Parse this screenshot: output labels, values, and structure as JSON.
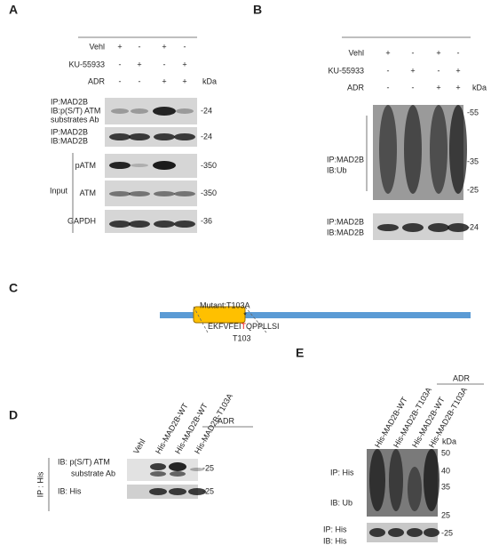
{
  "panel_a": {
    "label": "A",
    "treatments": [
      "Vehl",
      "KU-55933",
      "ADR"
    ],
    "signs": [
      [
        "+",
        "-",
        "+",
        "-"
      ],
      [
        "-",
        "+",
        "-",
        "+"
      ],
      [
        "-",
        "-",
        "+",
        "+"
      ]
    ],
    "unit": "kDa",
    "blots": [
      {
        "label": [
          "IP:MAD2B",
          "IB:p(S/T) ATM",
          "substrates Ab"
        ],
        "markers": [
          "-24"
        ]
      },
      {
        "label": [
          "IP:MAD2B",
          "IB:MAD2B"
        ],
        "markers": [
          "-24"
        ]
      },
      {
        "label": [
          "pATM"
        ],
        "markers": [
          "-350"
        ]
      },
      {
        "label": [
          "ATM"
        ],
        "markers": [
          "-350"
        ]
      },
      {
        "label": [
          "GAPDH"
        ],
        "markers": [
          "-36"
        ]
      }
    ],
    "group": "Input"
  },
  "panel_b": {
    "label": "B",
    "treatments": [
      "Vehl",
      "KU-55933",
      "ADR"
    ],
    "signs": [
      [
        "+",
        "-",
        "+",
        "-"
      ],
      [
        "-",
        "+",
        "-",
        "+"
      ],
      [
        "-",
        "-",
        "+",
        "+"
      ]
    ],
    "unit": "kDa",
    "blots": [
      {
        "label": [
          "IP:MAD2B",
          "IB:Ub"
        ],
        "markers": [
          "-55",
          "-35",
          "-25"
        ]
      },
      {
        "label": [
          "IP:MAD2B",
          "IB:MAD2B"
        ],
        "markers": [
          "-24"
        ]
      }
    ]
  },
  "panel_c": {
    "label": "C",
    "mutant": "Mutant:T103A",
    "asterisk": "*",
    "sequence": [
      "EKFVFEI",
      "T",
      "QPPLLSI"
    ],
    "site": "T103"
  },
  "panel_d": {
    "label": "D",
    "lanes": [
      "Vehl",
      "His-MAD2B-WT",
      "His-MAD2B-WT",
      "His-MAD2B-T103A"
    ],
    "treatment": "ADR",
    "ip": "IP : His",
    "blots": [
      {
        "label": [
          "IB: p(S/T) ATM",
          "substrate Ab"
        ],
        "markers": [
          "-25"
        ]
      },
      {
        "label": [
          "IB: His"
        ],
        "markers": [
          "-25"
        ]
      }
    ]
  },
  "panel_e": {
    "label": "E",
    "lanes": [
      "His-MAD2B-WT",
      "His-MAD2B-T103A",
      "His-MAD2B-WT",
      "His-MAD2B-T103A"
    ],
    "treatment": "ADR",
    "unit": "kDa",
    "blots": [
      {
        "label": [
          "IP: His",
          "IB: Ub"
        ],
        "markers": [
          "50",
          "40",
          "35",
          "25"
        ]
      },
      {
        "label": [
          "IP: His",
          "IB: His"
        ],
        "markers": [
          "-25"
        ]
      }
    ]
  }
}
